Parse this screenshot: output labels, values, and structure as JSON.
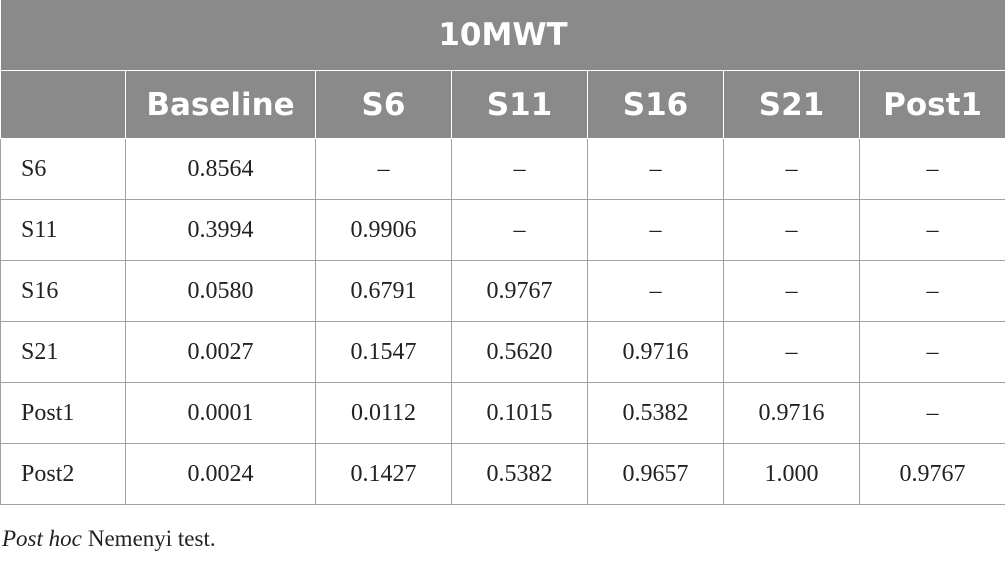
{
  "table": {
    "title": "10MWT",
    "header": [
      "Baseline",
      "S6",
      "S11",
      "S16",
      "S21",
      "Post1"
    ],
    "rows": [
      [
        "S6",
        "0.8564",
        "–",
        "–",
        "–",
        "–",
        "–"
      ],
      [
        "S11",
        "0.3994",
        "0.9906",
        "–",
        "–",
        "–",
        "–"
      ],
      [
        "S16",
        "0.0580",
        "0.6791",
        "0.9767",
        "–",
        "–",
        "–"
      ],
      [
        "S21",
        "0.0027",
        "0.1547",
        "0.5620",
        "0.9716",
        "–",
        "–"
      ],
      [
        "Post1",
        "0.0001",
        "0.0112",
        "0.1015",
        "0.5382",
        "0.9716",
        "–"
      ],
      [
        "Post2",
        "0.0024",
        "0.1427",
        "0.5382",
        "0.9657",
        "1.000",
        "0.9767"
      ]
    ]
  },
  "footnote": {
    "italic": "Post hoc",
    "text": "Nemenyi test."
  }
}
